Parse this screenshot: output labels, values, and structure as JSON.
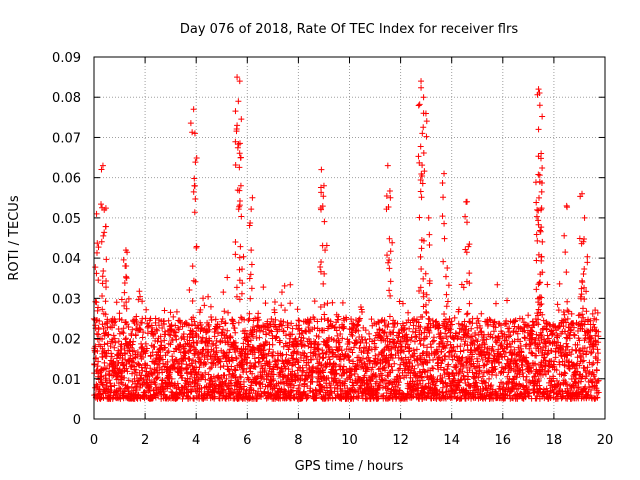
{
  "chart_data": {
    "type": "scatter",
    "title": "Day 076 of 2018, Rate Of TEC Index for receiver flrs",
    "xlabel": "GPS time / hours",
    "ylabel": "ROTI / TECUs",
    "xlim": [
      0,
      20
    ],
    "ylim": [
      0,
      0.09
    ],
    "x_ticks": [
      0,
      2,
      4,
      6,
      8,
      10,
      12,
      14,
      16,
      18,
      20
    ],
    "y_ticks": [
      0,
      0.01,
      0.02,
      0.03,
      0.04,
      0.05,
      0.06,
      0.07,
      0.08,
      0.09
    ],
    "x_tick_labels": [
      "0",
      "2",
      "4",
      "6",
      "8",
      "10",
      "12",
      "14",
      "16",
      "18",
      "20"
    ],
    "y_tick_labels": [
      "0",
      "0.01",
      "0.02",
      "0.03",
      "0.04",
      "0.05",
      "0.06",
      "0.07",
      "0.08",
      "0.09"
    ],
    "grid": true,
    "marker": "+",
    "marker_color": "#ff0000",
    "series": [
      {
        "name": "ROTI",
        "x_range_hours": [
          0,
          19.75
        ],
        "typical_band": [
          0.005,
          0.025
        ],
        "peaks": [
          {
            "x": 0.1,
            "y": 0.051
          },
          {
            "x": 0.35,
            "y": 0.063
          },
          {
            "x": 0.4,
            "y": 0.052
          },
          {
            "x": 1.25,
            "y": 0.042
          },
          {
            "x": 3.9,
            "y": 0.077
          },
          {
            "x": 3.95,
            "y": 0.071
          },
          {
            "x": 5.6,
            "y": 0.085
          },
          {
            "x": 5.65,
            "y": 0.079
          },
          {
            "x": 5.6,
            "y": 0.073
          },
          {
            "x": 5.75,
            "y": 0.065
          },
          {
            "x": 5.75,
            "y": 0.058
          },
          {
            "x": 6.2,
            "y": 0.055
          },
          {
            "x": 8.9,
            "y": 0.062
          },
          {
            "x": 9.0,
            "y": 0.058
          },
          {
            "x": 11.5,
            "y": 0.063
          },
          {
            "x": 11.6,
            "y": 0.055
          },
          {
            "x": 12.8,
            "y": 0.084
          },
          {
            "x": 12.9,
            "y": 0.08
          },
          {
            "x": 12.9,
            "y": 0.076
          },
          {
            "x": 12.85,
            "y": 0.071
          },
          {
            "x": 13.1,
            "y": 0.05
          },
          {
            "x": 13.7,
            "y": 0.061
          },
          {
            "x": 14.6,
            "y": 0.054
          },
          {
            "x": 17.4,
            "y": 0.082
          },
          {
            "x": 17.45,
            "y": 0.078
          },
          {
            "x": 17.4,
            "y": 0.072
          },
          {
            "x": 17.5,
            "y": 0.066
          },
          {
            "x": 17.45,
            "y": 0.059
          },
          {
            "x": 18.5,
            "y": 0.053
          },
          {
            "x": 19.1,
            "y": 0.056
          },
          {
            "x": 19.2,
            "y": 0.05
          }
        ]
      }
    ]
  }
}
